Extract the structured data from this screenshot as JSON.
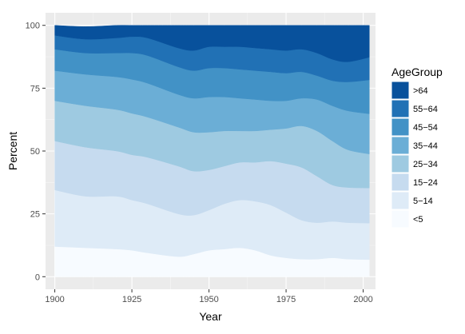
{
  "chart_data": {
    "type": "area",
    "stacked": true,
    "xlabel": "Year",
    "ylabel": "Percent",
    "xlim": [
      1897,
      2004
    ],
    "ylim": [
      -5,
      105
    ],
    "x_ticks": [
      1900,
      1925,
      1950,
      1975,
      2000
    ],
    "y_ticks": [
      0,
      25,
      50,
      75,
      100
    ],
    "grid": true,
    "panel_background": "#ebebeb",
    "legend": {
      "title": "AgeGroup",
      "placement": "right"
    },
    "x": [
      1900,
      1910,
      1920,
      1925,
      1930,
      1940,
      1945,
      1950,
      1955,
      1960,
      1965,
      1970,
      1975,
      1980,
      1985,
      1990,
      1995,
      2002
    ],
    "series": [
      {
        "name": "<5",
        "color": "#f7fbff",
        "values": [
          12.0,
          11.5,
          11.0,
          10.5,
          9.5,
          8.0,
          9.0,
          10.5,
          11.0,
          11.5,
          10.5,
          8.5,
          7.5,
          7.0,
          7.0,
          7.5,
          7.0,
          6.8
        ]
      },
      {
        "name": "5-14",
        "color": "#deebf7",
        "values": [
          22.5,
          20.5,
          21.0,
          20.0,
          19.5,
          17.0,
          15.5,
          16.0,
          18.0,
          19.0,
          19.5,
          20.0,
          18.0,
          15.5,
          14.5,
          14.5,
          14.5,
          14.5
        ]
      },
      {
        "name": "15-24",
        "color": "#c6dbef",
        "values": [
          19.5,
          19.5,
          18.0,
          18.0,
          18.5,
          19.0,
          17.5,
          16.0,
          15.0,
          15.0,
          15.5,
          17.5,
          19.5,
          21.0,
          18.5,
          14.5,
          14.0,
          14.0
        ]
      },
      {
        "name": "25-34",
        "color": "#9ecae1",
        "values": [
          16.0,
          16.5,
          16.5,
          16.5,
          16.0,
          15.5,
          15.5,
          15.0,
          14.0,
          12.5,
          12.5,
          12.5,
          14.0,
          16.5,
          18.0,
          17.5,
          15.0,
          13.5
        ]
      },
      {
        "name": "35-44",
        "color": "#6baed6",
        "values": [
          12.0,
          12.5,
          13.0,
          13.5,
          13.5,
          13.0,
          13.5,
          14.0,
          13.5,
          13.0,
          12.5,
          11.5,
          11.0,
          11.0,
          12.5,
          14.0,
          15.5,
          16.0
        ]
      },
      {
        "name": "45-54",
        "color": "#4292c6",
        "values": [
          8.5,
          8.5,
          9.5,
          10.5,
          11.0,
          11.0,
          11.0,
          11.5,
          11.5,
          11.5,
          11.5,
          11.5,
          11.0,
          10.5,
          9.5,
          10.0,
          11.5,
          13.5
        ]
      },
      {
        "name": "55-64",
        "color": "#2171b5",
        "values": [
          5.5,
          5.5,
          6.0,
          6.5,
          7.0,
          7.5,
          8.0,
          8.5,
          8.5,
          9.0,
          9.0,
          9.0,
          9.0,
          9.0,
          9.0,
          8.5,
          8.0,
          9.0
        ]
      },
      {
        "name": ">64",
        "color": "#08519c",
        "values": [
          4.0,
          5.0,
          5.0,
          4.5,
          5.0,
          9.0,
          10.0,
          8.5,
          8.5,
          8.5,
          9.0,
          9.5,
          10.0,
          9.5,
          11.0,
          13.5,
          14.5,
          12.7
        ]
      }
    ]
  }
}
